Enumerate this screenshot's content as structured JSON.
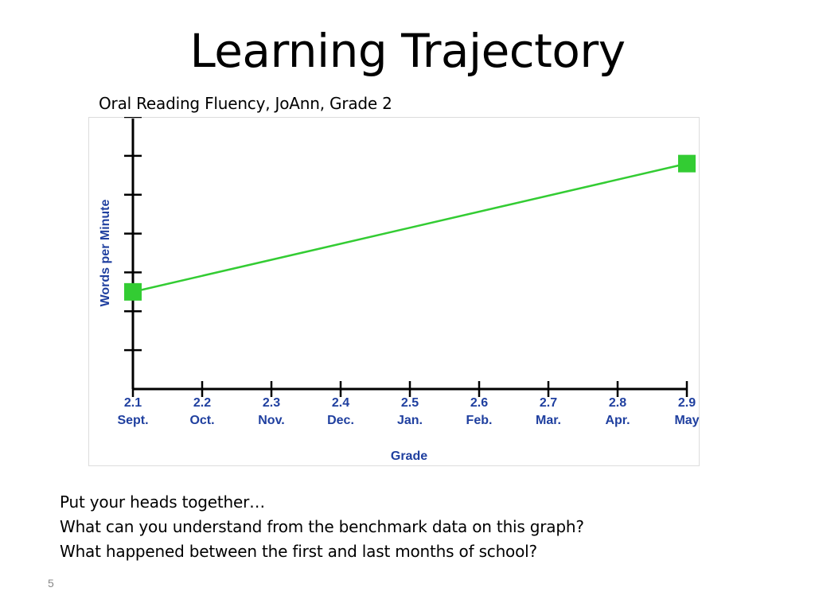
{
  "slide": {
    "title": "Learning Trajectory",
    "subtitle": "Oral Reading Fluency, JoAnn, Grade 2",
    "prompt_lines": [
      "Put your heads together…",
      "What can you understand from the benchmark data on this graph?",
      "What happened between the first and last months of school?"
    ],
    "slide_number": "5"
  },
  "colors": {
    "axis": "#000000",
    "axis_label": "#1f3f9f",
    "series": "#33cc33",
    "marker": "#33cc33"
  },
  "chart_data": {
    "type": "line",
    "title": "",
    "xlabel": "Grade",
    "ylabel": "Words per Minute",
    "grid": false,
    "x_ticks": [
      {
        "value": "2.1",
        "month": "Sept."
      },
      {
        "value": "2.2",
        "month": "Oct."
      },
      {
        "value": "2.3",
        "month": "Nov."
      },
      {
        "value": "2.4",
        "month": "Dec."
      },
      {
        "value": "2.5",
        "month": "Jan."
      },
      {
        "value": "2.6",
        "month": "Feb."
      },
      {
        "value": "2.7",
        "month": "Mar."
      },
      {
        "value": "2.8",
        "month": "Apr."
      },
      {
        "value": "2.9",
        "month": "May"
      }
    ],
    "xlim": [
      2.1,
      2.9
    ],
    "ylim": [
      0,
      7
    ],
    "y_tick_values": [
      1,
      2,
      3,
      4,
      5,
      6,
      7
    ],
    "series": [
      {
        "points": [
          {
            "x": 2.1,
            "y": 2.5
          },
          {
            "x": 2.9,
            "y": 5.8
          }
        ]
      }
    ]
  }
}
